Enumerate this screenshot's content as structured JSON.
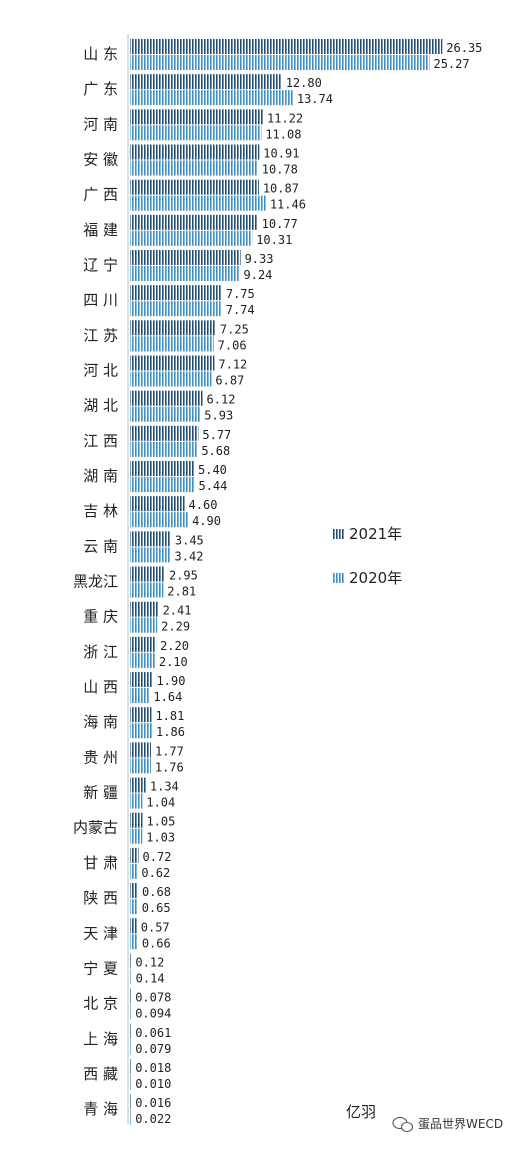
{
  "chart_data": {
    "type": "bar",
    "orientation": "horizontal",
    "categories": [
      "山 东",
      "广 东",
      "河 南",
      "安 徽",
      "广 西",
      "福 建",
      "辽 宁",
      "四 川",
      "江 苏",
      "河 北",
      "湖 北",
      "江 西",
      "湖 南",
      "吉 林",
      "云 南",
      "黑龙江",
      "重 庆",
      "浙 江",
      "山 西",
      "海 南",
      "贵 州",
      "新 疆",
      "内蒙古",
      "甘 肃",
      "陕 西",
      "天 津",
      "宁 夏",
      "北 京",
      "上 海",
      "西 藏",
      "青 海"
    ],
    "series": [
      {
        "name": "2021年",
        "color": "#1f4e79",
        "values": [
          26.35,
          12.8,
          11.22,
          10.91,
          10.87,
          10.77,
          9.33,
          7.75,
          7.25,
          7.12,
          6.12,
          5.77,
          5.4,
          4.6,
          3.45,
          2.95,
          2.41,
          2.2,
          1.9,
          1.81,
          1.77,
          1.34,
          1.05,
          0.72,
          0.68,
          0.57,
          0.12,
          0.078,
          0.061,
          0.018,
          0.016
        ],
        "labels": [
          "26.35",
          "12.80",
          "11.22",
          "10.91",
          "10.87",
          "10.77",
          "9.33",
          "7.75",
          "7.25",
          "7.12",
          "6.12",
          "5.77",
          "5.40",
          "4.60",
          "3.45",
          "2.95",
          "2.41",
          "2.20",
          "1.90",
          "1.81",
          "1.77",
          "1.34",
          "1.05",
          "0.72",
          "0.68",
          "0.57",
          "0.12",
          "0.078",
          "0.061",
          "0.018",
          "0.016"
        ]
      },
      {
        "name": "2020年",
        "color": "#3a8fc8",
        "values": [
          25.27,
          13.74,
          11.08,
          10.78,
          11.46,
          10.31,
          9.24,
          7.74,
          7.06,
          6.87,
          5.93,
          5.68,
          5.44,
          4.9,
          3.42,
          2.81,
          2.29,
          2.1,
          1.64,
          1.86,
          1.76,
          1.04,
          1.03,
          0.62,
          0.65,
          0.66,
          0.14,
          0.094,
          0.079,
          0.01,
          0.022
        ],
        "labels": [
          "25.27",
          "13.74",
          "11.08",
          "10.78",
          "11.46",
          "10.31",
          "9.24",
          "7.74",
          "7.06",
          "6.87",
          "5.93",
          "5.68",
          "5.44",
          "4.90",
          "3.42",
          "2.81",
          "2.29",
          "2.10",
          "1.64",
          "1.86",
          "1.76",
          "1.04",
          "1.03",
          "0.62",
          "0.65",
          "0.66",
          "0.14",
          "0.094",
          "0.079",
          "0.010",
          "0.022"
        ]
      }
    ],
    "xlim": [
      0,
      27
    ],
    "grid": false,
    "legend_position": "right",
    "unit_label": "亿羽"
  },
  "watermark": {
    "icon": "wechat-icon",
    "text": "蛋品世界WECD"
  }
}
